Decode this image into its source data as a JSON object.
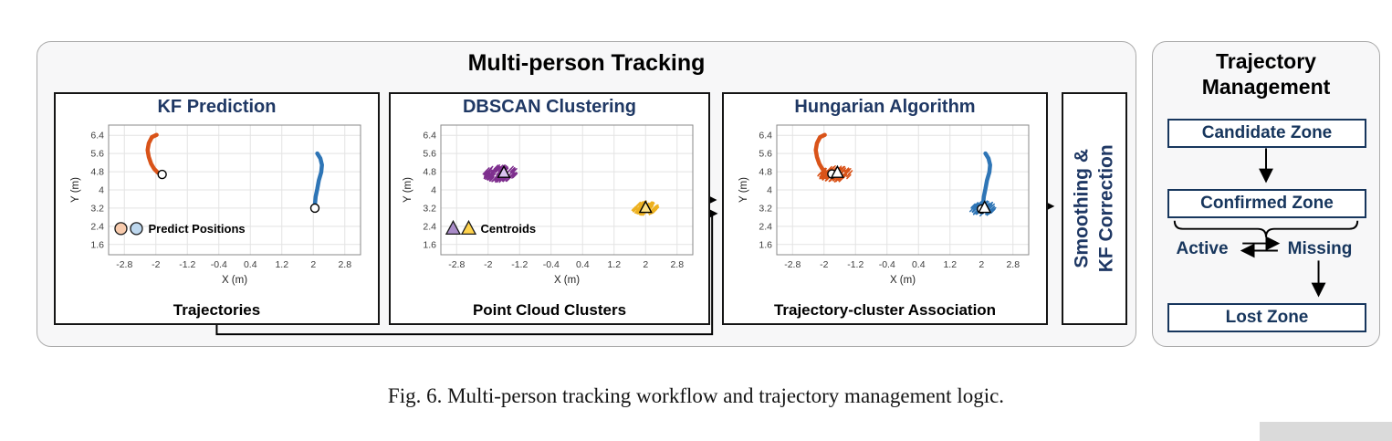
{
  "figure": {
    "caption": "Fig. 6. Multi-person tracking workflow and trajectory management logic."
  },
  "main_panel": {
    "title": "Multi-person Tracking",
    "stages": [
      {
        "title": "KF Prediction",
        "footer": "Trajectories"
      },
      {
        "title": "DBSCAN Clustering",
        "footer": "Point Cloud Clusters"
      },
      {
        "title": "Hungarian Algorithm",
        "footer": "Trajectory-cluster Association"
      }
    ],
    "smoothing_box": {
      "line1": "Smoothing &",
      "line2": "KF Correction"
    }
  },
  "management_panel": {
    "title_line1": "Trajectory",
    "title_line2": "Management",
    "zones": {
      "candidate": "Candidate Zone",
      "confirmed": "Confirmed Zone",
      "lost": "Lost Zone"
    },
    "states": {
      "active": "Active",
      "missing": "Missing"
    }
  },
  "colors": {
    "accent_navy": "#1F3864",
    "trajectory_orange": "#D95319",
    "trajectory_blue": "#2E75B6",
    "cluster_purple": "#7E2F8E",
    "cluster_yellow": "#EDB120",
    "panel_background": "#F7F7F8"
  },
  "chart_data": [
    {
      "type": "line",
      "title": "KF Prediction",
      "xlabel": "X (m)",
      "ylabel": "Y (m)",
      "xlim": [
        -3.2,
        3.2
      ],
      "ylim": [
        1.15,
        6.85
      ],
      "xticks": [
        -2.8,
        -2,
        -1.2,
        -0.4,
        0.4,
        1.2,
        2,
        2.8
      ],
      "yticks": [
        1.6,
        2.4,
        3.2,
        4,
        4.8,
        5.6,
        6.4
      ],
      "grid": true,
      "series": [
        {
          "name": "person-1-trajectory",
          "color": "#D95319",
          "points": [
            [
              -1.98,
              6.42
            ],
            [
              -2.1,
              6.32
            ],
            [
              -2.18,
              6.05
            ],
            [
              -2.21,
              5.75
            ],
            [
              -2.18,
              5.45
            ],
            [
              -2.12,
              5.15
            ],
            [
              -2.04,
              4.92
            ],
            [
              -1.95,
              4.76
            ]
          ]
        },
        {
          "name": "person-2-trajectory",
          "color": "#2E75B6",
          "points": [
            [
              2.1,
              5.6
            ],
            [
              2.18,
              5.38
            ],
            [
              2.22,
              5.1
            ],
            [
              2.2,
              4.78
            ],
            [
              2.14,
              4.42
            ],
            [
              2.1,
              4.05
            ],
            [
              2.06,
              3.7
            ],
            [
              2.04,
              3.34
            ]
          ]
        }
      ],
      "markers": [
        {
          "shape": "circle",
          "x": -1.84,
          "y": 4.68,
          "fill": "#FFFFFF",
          "edge": "#000000",
          "size": 9
        },
        {
          "shape": "circle",
          "x": 2.04,
          "y": 3.2,
          "fill": "#FFFFFF",
          "edge": "#000000",
          "size": 9
        }
      ],
      "legend": {
        "label": "Predict Positions",
        "x": -3.05,
        "y": 2.3,
        "items": [
          {
            "shape": "circle",
            "fill": "#F8CBAD"
          },
          {
            "shape": "circle",
            "fill": "#BDD7EE"
          }
        ]
      }
    },
    {
      "type": "scatter",
      "title": "DBSCAN Clustering",
      "xlabel": "X (m)",
      "ylabel": "Y (m)",
      "xlim": [
        -3.2,
        3.2
      ],
      "ylim": [
        1.15,
        6.85
      ],
      "xticks": [
        -2.8,
        -2,
        -1.2,
        -0.4,
        0.4,
        1.2,
        2,
        2.8
      ],
      "yticks": [
        1.6,
        2.4,
        3.2,
        4,
        4.8,
        5.6,
        6.4
      ],
      "grid": true,
      "clusters": [
        {
          "name": "point-cloud-cluster-1",
          "color": "#7E2F8E",
          "cx": -1.68,
          "cy": 4.72,
          "rx": 0.42,
          "ry": 0.3,
          "count": 110,
          "seed": 7
        },
        {
          "name": "point-cloud-cluster-2",
          "color": "#EDB120",
          "cx": 2.0,
          "cy": 3.2,
          "rx": 0.3,
          "ry": 0.24,
          "count": 95,
          "seed": 13
        }
      ],
      "markers": [
        {
          "shape": "triangle",
          "x": -1.6,
          "y": 4.76,
          "fill": "#D9C2EE",
          "edge": "#000000",
          "size": 11
        },
        {
          "shape": "triangle",
          "x": 2.0,
          "y": 3.22,
          "fill": "#FFE285",
          "edge": "#000000",
          "size": 11
        }
      ],
      "legend": {
        "label": "Centroids",
        "x": -3.05,
        "y": 2.3,
        "items": [
          {
            "shape": "triangle",
            "fill": "#A98BC8"
          },
          {
            "shape": "triangle",
            "fill": "#FFD34D"
          }
        ]
      }
    },
    {
      "type": "line+scatter",
      "title": "Hungarian Algorithm",
      "xlabel": "X (m)",
      "ylabel": "Y (m)",
      "xlim": [
        -3.2,
        3.2
      ],
      "ylim": [
        1.15,
        6.85
      ],
      "xticks": [
        -2.8,
        -2,
        -1.2,
        -0.4,
        0.4,
        1.2,
        2,
        2.8
      ],
      "yticks": [
        1.6,
        2.4,
        3.2,
        4,
        4.8,
        5.6,
        6.4
      ],
      "grid": true,
      "series": [
        {
          "name": "person-1-trajectory",
          "color": "#D95319",
          "points": [
            [
              -1.98,
              6.42
            ],
            [
              -2.1,
              6.32
            ],
            [
              -2.18,
              6.05
            ],
            [
              -2.21,
              5.75
            ],
            [
              -2.18,
              5.45
            ],
            [
              -2.12,
              5.15
            ],
            [
              -2.04,
              4.92
            ],
            [
              -1.95,
              4.76
            ]
          ]
        },
        {
          "name": "person-2-trajectory",
          "color": "#2E75B6",
          "points": [
            [
              2.1,
              5.6
            ],
            [
              2.18,
              5.38
            ],
            [
              2.22,
              5.1
            ],
            [
              2.2,
              4.78
            ],
            [
              2.14,
              4.42
            ],
            [
              2.1,
              4.05
            ],
            [
              2.06,
              3.7
            ],
            [
              2.04,
              3.34
            ]
          ]
        }
      ],
      "clusters": [
        {
          "name": "associated-cluster-1",
          "color": "#D95319",
          "cx": -1.7,
          "cy": 4.7,
          "rx": 0.42,
          "ry": 0.28,
          "count": 100,
          "seed": 21
        },
        {
          "name": "associated-cluster-2",
          "color": "#2E75B6",
          "cx": 2.05,
          "cy": 3.18,
          "rx": 0.3,
          "ry": 0.26,
          "count": 95,
          "seed": 29
        }
      ],
      "markers": [
        {
          "shape": "circle",
          "x": -1.8,
          "y": 4.7,
          "fill": "#FFFFFF",
          "edge": "#000000",
          "size": 9
        },
        {
          "shape": "triangle",
          "x": -1.66,
          "y": 4.76,
          "fill": "#FFFFFF",
          "edge": "#000000",
          "size": 11
        },
        {
          "shape": "circle",
          "x": 2.0,
          "y": 3.16,
          "fill": "#FFFFFF",
          "edge": "#000000",
          "size": 9
        },
        {
          "shape": "triangle",
          "x": 2.08,
          "y": 3.22,
          "fill": "#FFFFFF",
          "edge": "#000000",
          "size": 11
        }
      ]
    }
  ]
}
